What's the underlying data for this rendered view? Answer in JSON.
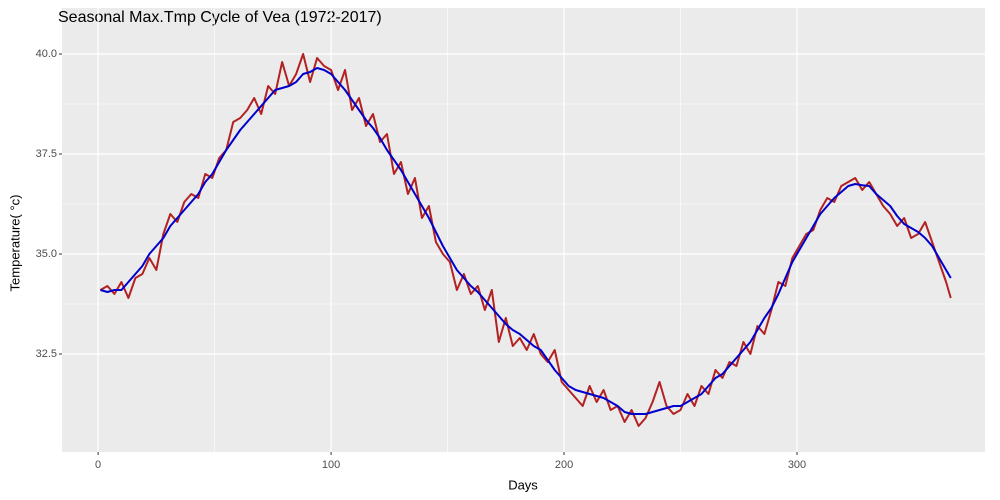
{
  "chart_data": {
    "type": "line",
    "title": "Seasonal Max.Tmp Cycle of Vea (1972-2017)",
    "xlabel": "Days",
    "ylabel": "Temperature( °c)",
    "x": [
      1,
      4,
      7,
      10,
      13,
      16,
      19,
      22,
      25,
      28,
      31,
      34,
      37,
      40,
      43,
      46,
      49,
      52,
      55,
      58,
      61,
      64,
      67,
      70,
      73,
      76,
      79,
      82,
      85,
      88,
      91,
      94,
      97,
      100,
      103,
      106,
      109,
      112,
      115,
      118,
      121,
      124,
      127,
      130,
      133,
      136,
      139,
      142,
      145,
      148,
      151,
      154,
      157,
      160,
      163,
      166,
      169,
      172,
      175,
      178,
      181,
      184,
      187,
      190,
      193,
      196,
      199,
      202,
      205,
      208,
      211,
      214,
      217,
      220,
      223,
      226,
      229,
      232,
      235,
      238,
      241,
      244,
      247,
      250,
      253,
      256,
      259,
      262,
      265,
      268,
      271,
      274,
      277,
      280,
      283,
      286,
      289,
      292,
      295,
      298,
      301,
      304,
      307,
      310,
      313,
      316,
      319,
      322,
      325,
      328,
      331,
      334,
      337,
      340,
      343,
      346,
      349,
      352,
      355,
      358,
      361,
      364,
      366
    ],
    "series": [
      {
        "color": "#b22222",
        "values": [
          34.1,
          34.2,
          34.0,
          34.3,
          33.9,
          34.4,
          34.5,
          34.9,
          34.6,
          35.5,
          36.0,
          35.8,
          36.3,
          36.5,
          36.4,
          37.0,
          36.9,
          37.4,
          37.6,
          38.3,
          38.4,
          38.6,
          38.9,
          38.5,
          39.2,
          39.0,
          39.8,
          39.2,
          39.5,
          40.0,
          39.3,
          39.9,
          39.7,
          39.6,
          39.1,
          39.6,
          38.6,
          38.9,
          38.2,
          38.5,
          37.8,
          38.0,
          37.0,
          37.3,
          36.5,
          36.9,
          35.9,
          36.2,
          35.3,
          35.0,
          34.8,
          34.1,
          34.5,
          34.0,
          34.2,
          33.6,
          34.1,
          32.8,
          33.4,
          32.7,
          32.9,
          32.6,
          33.0,
          32.5,
          32.3,
          32.6,
          31.8,
          31.6,
          31.4,
          31.2,
          31.7,
          31.3,
          31.6,
          31.1,
          31.2,
          30.8,
          31.1,
          30.7,
          30.9,
          31.3,
          31.8,
          31.2,
          31.0,
          31.1,
          31.5,
          31.2,
          31.7,
          31.5,
          32.1,
          31.9,
          32.3,
          32.2,
          32.8,
          32.5,
          33.2,
          33.0,
          33.6,
          34.3,
          34.2,
          34.9,
          35.2,
          35.5,
          35.6,
          36.1,
          36.4,
          36.3,
          36.7,
          36.8,
          36.9,
          36.6,
          36.8,
          36.5,
          36.2,
          36.0,
          35.7,
          35.9,
          35.4,
          35.5,
          35.8,
          35.3,
          34.8,
          34.3,
          33.9
        ]
      },
      {
        "color": "#0000cd",
        "values": [
          34.1,
          34.05,
          34.1,
          34.1,
          34.3,
          34.5,
          34.7,
          35.0,
          35.2,
          35.4,
          35.7,
          35.9,
          36.1,
          36.3,
          36.5,
          36.8,
          37.0,
          37.3,
          37.6,
          37.85,
          38.1,
          38.3,
          38.5,
          38.7,
          38.9,
          39.1,
          39.15,
          39.2,
          39.3,
          39.5,
          39.55,
          39.65,
          39.6,
          39.5,
          39.3,
          39.1,
          38.85,
          38.6,
          38.35,
          38.15,
          37.9,
          37.6,
          37.35,
          37.1,
          36.8,
          36.5,
          36.2,
          35.9,
          35.55,
          35.2,
          34.9,
          34.6,
          34.4,
          34.2,
          34.05,
          33.85,
          33.65,
          33.45,
          33.25,
          33.1,
          33.0,
          32.85,
          32.7,
          32.6,
          32.35,
          32.1,
          31.9,
          31.7,
          31.6,
          31.55,
          31.5,
          31.45,
          31.4,
          31.3,
          31.2,
          31.05,
          31.0,
          31.0,
          31.0,
          31.05,
          31.1,
          31.15,
          31.2,
          31.2,
          31.3,
          31.4,
          31.5,
          31.7,
          31.9,
          32.0,
          32.2,
          32.4,
          32.6,
          32.8,
          33.1,
          33.4,
          33.65,
          34.0,
          34.4,
          34.8,
          35.1,
          35.4,
          35.7,
          36.0,
          36.2,
          36.4,
          36.55,
          36.7,
          36.75,
          36.72,
          36.7,
          36.5,
          36.35,
          36.2,
          35.95,
          35.75,
          35.65,
          35.55,
          35.4,
          35.2,
          34.9,
          34.6,
          34.4
        ]
      }
    ],
    "xlim": [
      -15.5,
      380.7
    ],
    "ylim": [
      30.05,
      41.15
    ],
    "xticks": [
      0,
      100,
      200,
      300
    ],
    "yticks": [
      32.5,
      {
        "value": 35,
        "label": "35.0"
      },
      37.5,
      {
        "value": 40,
        "label": "40.0"
      }
    ],
    "grid": true
  }
}
